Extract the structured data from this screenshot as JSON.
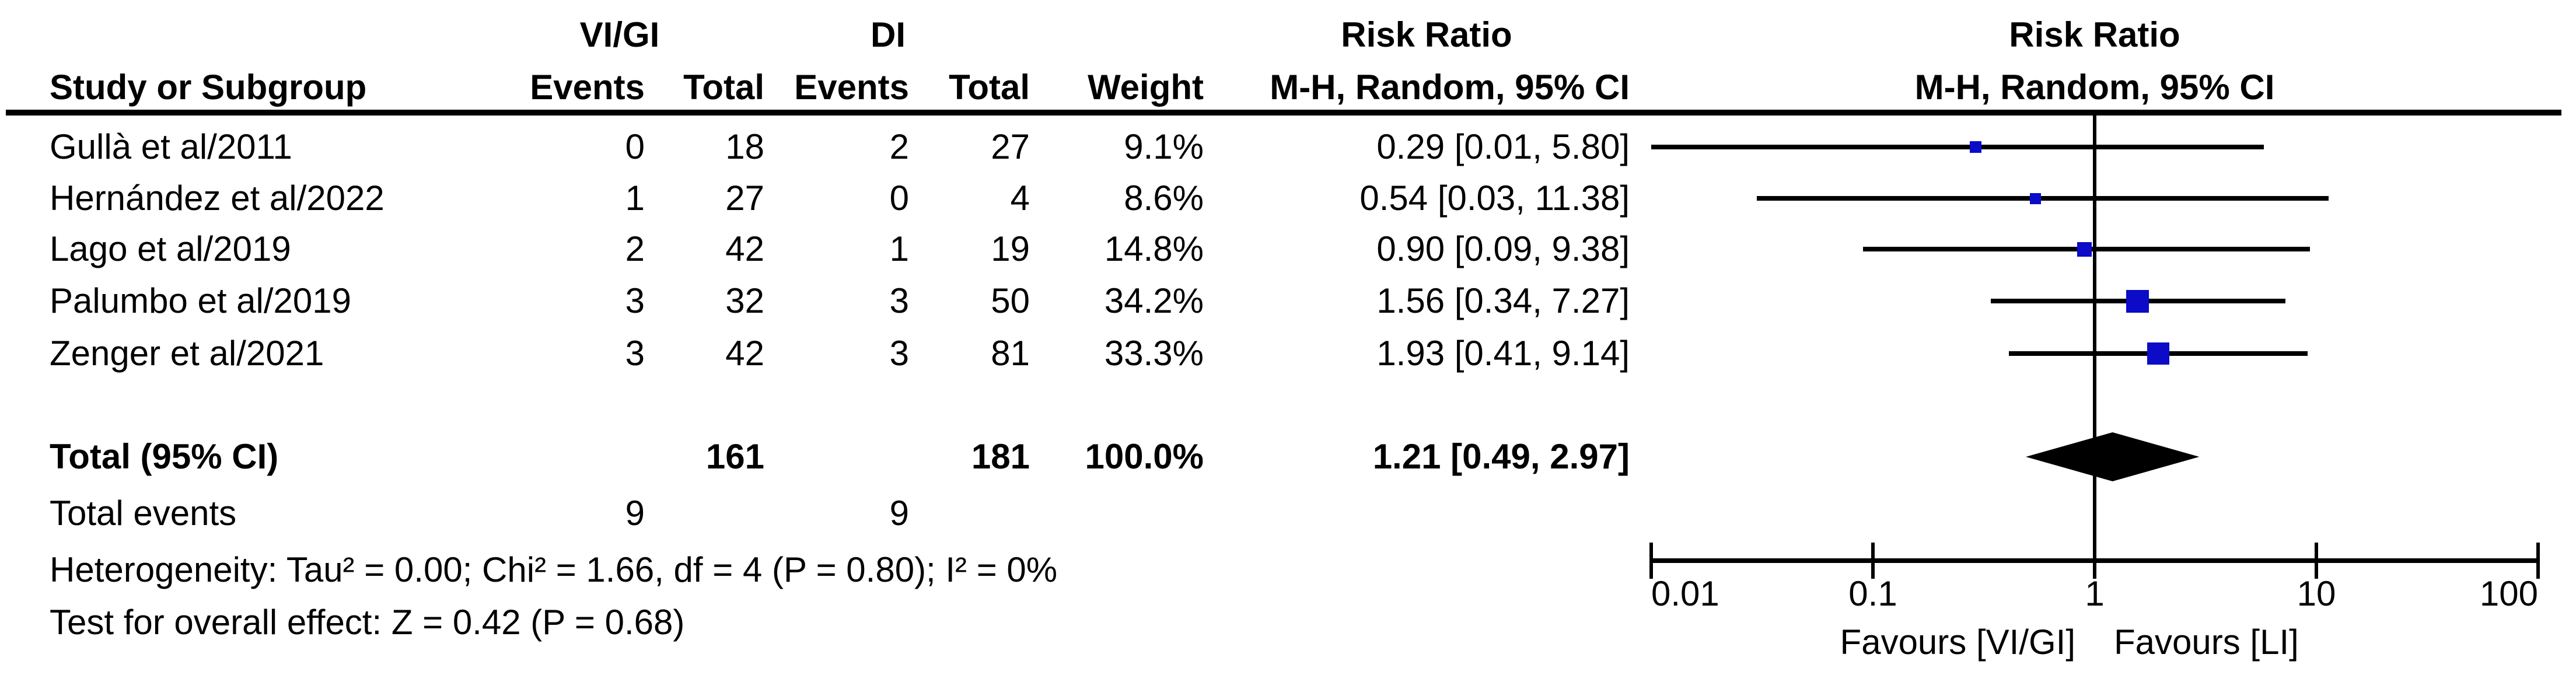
{
  "table": {
    "header": {
      "group1": "VI/GI",
      "group2": "DI",
      "study": "Study or Subgroup",
      "events": "Events",
      "total": "Total",
      "weight": "Weight",
      "risk_ratio_line1": "Risk Ratio",
      "risk_ratio_line2": "M-H, Random, 95% CI"
    },
    "plot_header": {
      "line1": "Risk Ratio",
      "line2": "M-H, Random, 95% CI"
    }
  },
  "chart_data": {
    "type": "forest",
    "effect_measure": "Risk Ratio",
    "method": "M-H, Random, 95% CI",
    "scale": "log",
    "axis": {
      "min": 0.01,
      "max": 100,
      "ticks": [
        0.01,
        0.1,
        1,
        10,
        100
      ],
      "tick_labels": [
        "0.01",
        "0.1",
        "1",
        "10",
        "100"
      ]
    },
    "studies": [
      {
        "name": "Gullà et al/2011",
        "events1": "0",
        "total1": "18",
        "events2": "2",
        "total2": "27",
        "weight": "9.1%",
        "rr": 0.29,
        "ci_low": 0.01,
        "ci_high": 5.8,
        "label": "0.29 [0.01, 5.80]"
      },
      {
        "name": "Hernández et al/2022",
        "events1": "1",
        "total1": "27",
        "events2": "0",
        "total2": "4",
        "weight": "8.6%",
        "rr": 0.54,
        "ci_low": 0.03,
        "ci_high": 11.38,
        "label": "0.54 [0.03, 11.38]"
      },
      {
        "name": "Lago et al/2019",
        "events1": "2",
        "total1": "42",
        "events2": "1",
        "total2": "19",
        "weight": "14.8%",
        "rr": 0.9,
        "ci_low": 0.09,
        "ci_high": 9.38,
        "label": "0.90 [0.09, 9.38]"
      },
      {
        "name": "Palumbo et al/2019",
        "events1": "3",
        "total1": "32",
        "events2": "3",
        "total2": "50",
        "weight": "34.2%",
        "rr": 1.56,
        "ci_low": 0.34,
        "ci_high": 7.27,
        "label": "1.56 [0.34, 7.27]"
      },
      {
        "name": "Zenger et al/2021",
        "events1": "3",
        "total1": "42",
        "events2": "3",
        "total2": "81",
        "weight": "33.3%",
        "rr": 1.93,
        "ci_low": 0.41,
        "ci_high": 9.14,
        "label": "1.93 [0.41, 9.14]"
      }
    ],
    "total": {
      "label": "Total (95% CI)",
      "total1": "161",
      "total2": "181",
      "weight": "100.0%",
      "rr": 1.21,
      "ci_low": 0.49,
      "ci_high": 2.97,
      "label_ci": "1.21 [0.49, 2.97]"
    },
    "total_events": {
      "label": "Total events",
      "events1": "9",
      "events2": "9"
    },
    "heterogeneity": "Heterogeneity: Tau² = 0.00; Chi² = 1.66, df = 4 (P = 0.80); I² = 0%",
    "overall_effect": "Test for overall effect: Z = 0.42 (P = 0.68)",
    "favours_left": "Favours [VI/GI]",
    "favours_right": "Favours [LI]",
    "colors": {
      "marker": "#0b0bc8",
      "line": "#000000",
      "diamond": "#000000",
      "text": "#000000"
    }
  }
}
